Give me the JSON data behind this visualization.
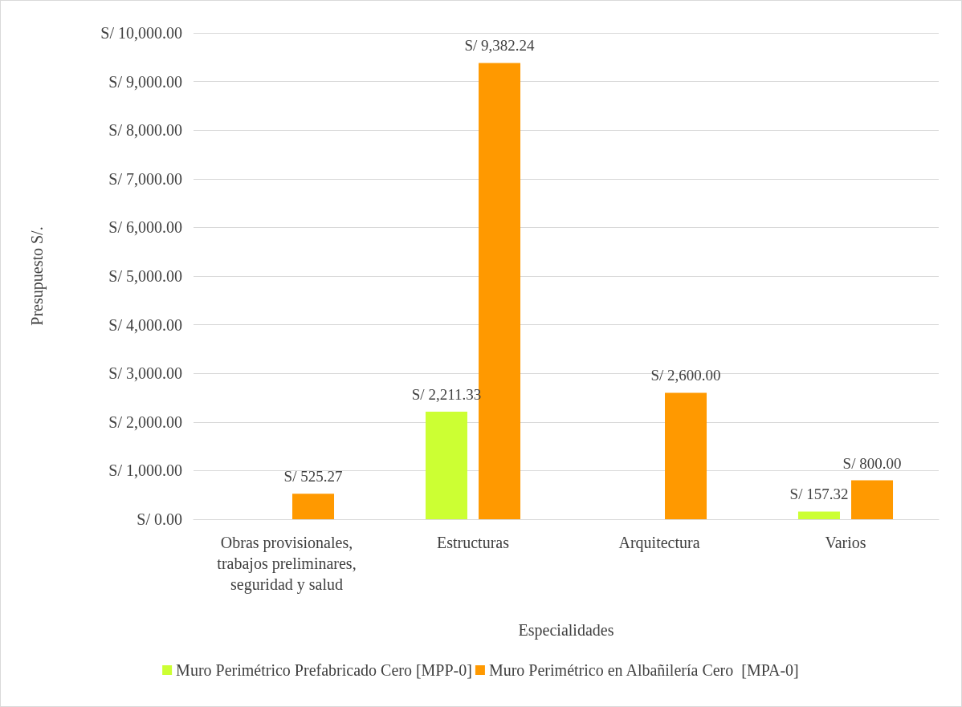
{
  "chart_data": {
    "type": "bar",
    "xlabel": "Especialidades",
    "ylabel": "Presupuesto S/.",
    "categories": [
      "Obras provisionales,\ntrabajos preliminares,\nseguridad y salud",
      "Estructuras",
      "Arquitectura",
      "Varios"
    ],
    "series": [
      {
        "name": "Muro Perimétrico Prefabricado Cero [MPP-0]",
        "color": "#ccff33",
        "values": [
          null,
          2211.33,
          null,
          157.32
        ],
        "value_labels": [
          null,
          "S/ 2,211.33",
          null,
          "S/ 157.32"
        ]
      },
      {
        "name": "Muro Perimétrico en Albañilería Cero  [MPA-0]",
        "color": "#ff9900",
        "values": [
          525.27,
          9382.24,
          2600,
          800
        ],
        "value_labels": [
          "S/ 525.27",
          "S/ 9,382.24",
          "S/ 2,600.00",
          "S/ 800.00"
        ]
      }
    ],
    "ylim": [
      0,
      10000
    ],
    "yticks": [
      {
        "value": 0,
        "label": "S/ 0.00"
      },
      {
        "value": 1000,
        "label": "S/ 1,000.00"
      },
      {
        "value": 2000,
        "label": "S/ 2,000.00"
      },
      {
        "value": 3000,
        "label": "S/ 3,000.00"
      },
      {
        "value": 4000,
        "label": "S/ 4,000.00"
      },
      {
        "value": 5000,
        "label": "S/ 5,000.00"
      },
      {
        "value": 6000,
        "label": "S/ 6,000.00"
      },
      {
        "value": 7000,
        "label": "S/ 7,000.00"
      },
      {
        "value": 8000,
        "label": "S/ 8,000.00"
      },
      {
        "value": 9000,
        "label": "S/ 9,000.00"
      },
      {
        "value": 10000,
        "label": "S/ 10,000.00"
      }
    ],
    "grid": "y",
    "legend": "bottom"
  }
}
